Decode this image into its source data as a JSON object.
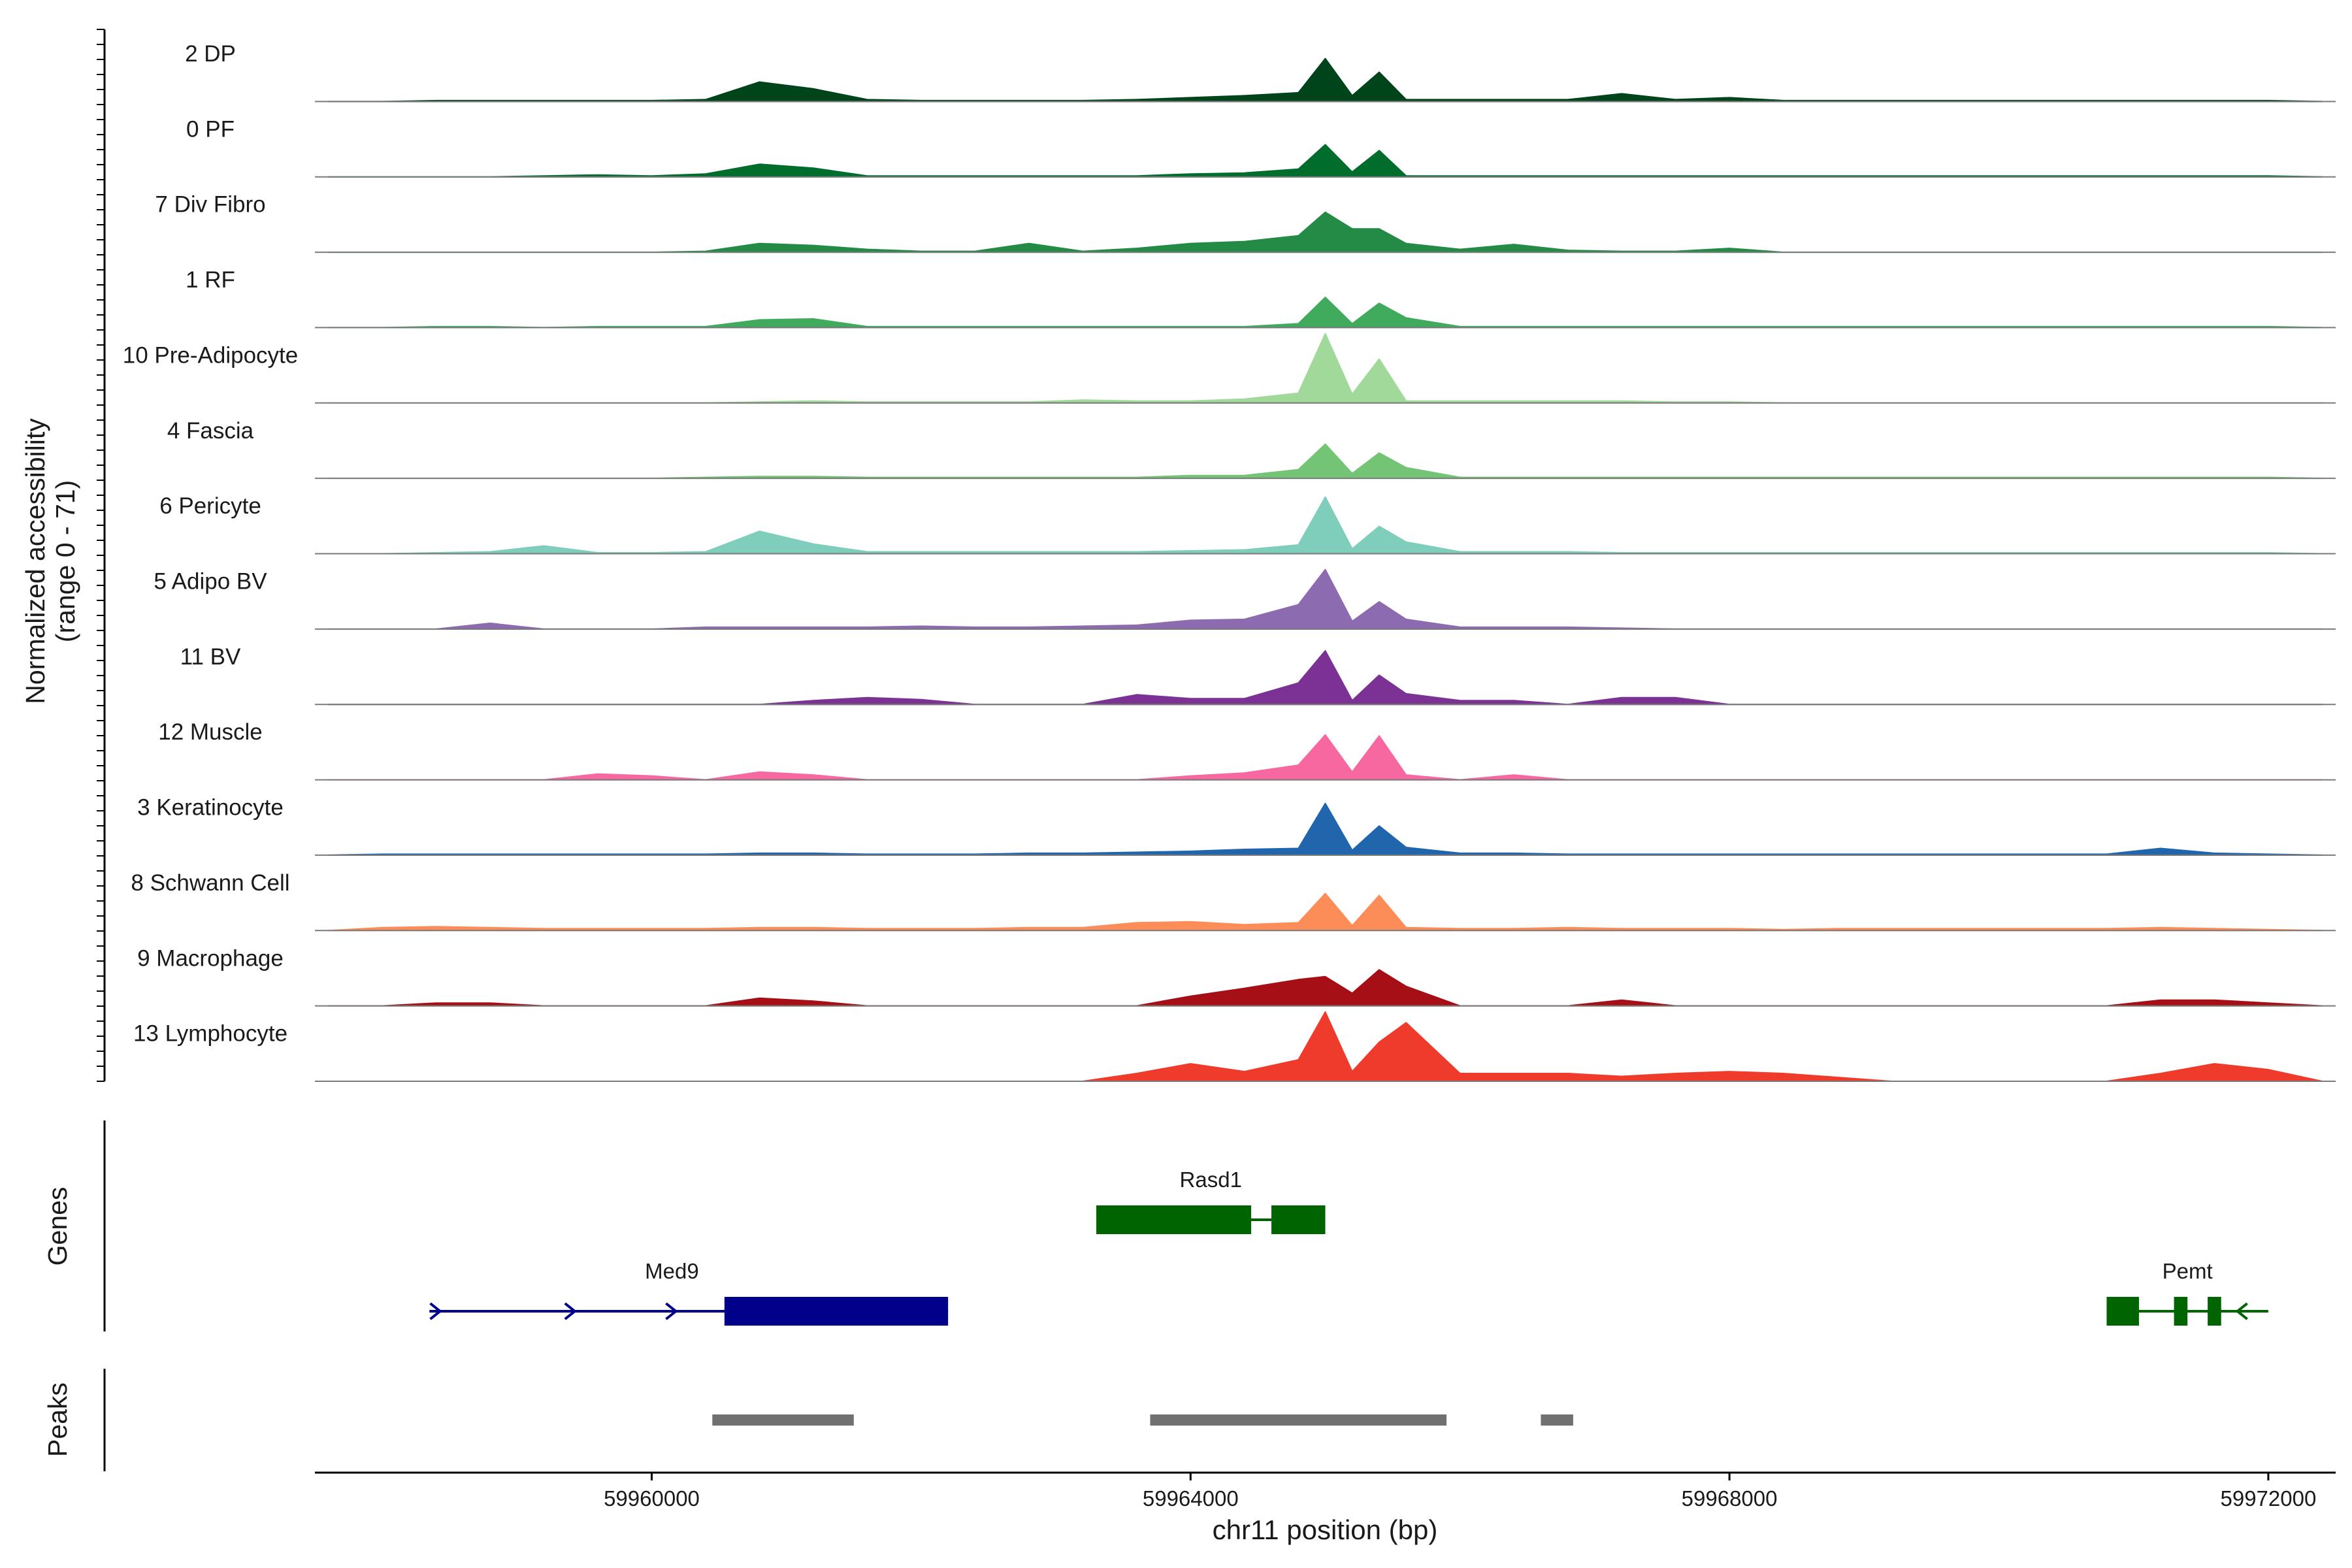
{
  "chart_data": {
    "type": "area",
    "coverage": {
      "ylabel_line1": "Normalized accessibility",
      "ylabel_line2": "(range 0 - 71)",
      "ylim": [
        0,
        71
      ],
      "x_positions": [
        59957600,
        59958000,
        59958400,
        59958800,
        59959200,
        59959600,
        59960000,
        59960400,
        59960800,
        59961200,
        59961600,
        59962000,
        59962400,
        59962800,
        59963200,
        59963600,
        59964000,
        59964400,
        59964800,
        59965000,
        59965200,
        59965400,
        59965600,
        59966000,
        59966400,
        59966800,
        59967200,
        59967600,
        59968000,
        59968400,
        59968800,
        59969200,
        59969600,
        59970000,
        59970400,
        59970800,
        59971200,
        59971600,
        59972000,
        59972400
      ],
      "tracks": [
        {
          "label": "2 DP",
          "color": "#00441b",
          "values": [
            0,
            0,
            1,
            1,
            1,
            1,
            1,
            2,
            20,
            13,
            2,
            1,
            1,
            1,
            1,
            2,
            4,
            6,
            9,
            44,
            6,
            30,
            2,
            2,
            2,
            2,
            8,
            2,
            4,
            1,
            1,
            1,
            1,
            1,
            1,
            1,
            1,
            1,
            1,
            0
          ]
        },
        {
          "label": "0 PF",
          "color": "#006d2c",
          "values": [
            0,
            0,
            0,
            0,
            1,
            2,
            1,
            3,
            13,
            9,
            1,
            1,
            1,
            1,
            1,
            1,
            3,
            4,
            8,
            33,
            5,
            27,
            1,
            1,
            1,
            1,
            1,
            1,
            1,
            1,
            1,
            1,
            1,
            1,
            1,
            1,
            1,
            1,
            1,
            0
          ]
        },
        {
          "label": "7 Div Fibro",
          "color": "#238b45",
          "values": [
            0,
            0,
            0,
            0,
            0,
            0,
            0,
            1,
            9,
            7,
            3,
            1,
            1,
            9,
            1,
            4,
            9,
            11,
            17,
            41,
            24,
            24,
            9,
            3,
            8,
            2,
            1,
            1,
            4,
            0,
            0,
            0,
            0,
            0,
            0,
            0,
            0,
            0,
            0,
            0
          ]
        },
        {
          "label": "1 RF",
          "color": "#41ab5d",
          "values": [
            0,
            0,
            1,
            1,
            0,
            1,
            1,
            1,
            8,
            9,
            1,
            1,
            1,
            1,
            1,
            1,
            1,
            1,
            4,
            31,
            4,
            25,
            10,
            1,
            1,
            1,
            1,
            1,
            1,
            1,
            1,
            1,
            1,
            1,
            1,
            1,
            1,
            1,
            1,
            0
          ]
        },
        {
          "label": "10 Pre-Adipocyte",
          "color": "#a1d99b",
          "values": [
            0,
            0,
            0,
            0,
            0,
            0,
            0,
            0,
            1,
            2,
            1,
            1,
            1,
            1,
            3,
            2,
            2,
            4,
            10,
            71,
            9,
            45,
            2,
            2,
            2,
            2,
            2,
            1,
            1,
            0,
            0,
            0,
            0,
            0,
            0,
            0,
            0,
            0,
            0,
            0
          ]
        },
        {
          "label": "4 Fascia",
          "color": "#74c476",
          "values": [
            0,
            0,
            0,
            0,
            0,
            0,
            0,
            1,
            2,
            2,
            1,
            1,
            1,
            1,
            1,
            1,
            3,
            3,
            9,
            35,
            5,
            26,
            11,
            1,
            1,
            1,
            1,
            1,
            1,
            1,
            1,
            1,
            1,
            1,
            1,
            1,
            1,
            1,
            1,
            0
          ]
        },
        {
          "label": "6 Pericyte",
          "color": "#7fcdbb",
          "values": [
            0,
            0,
            1,
            2,
            8,
            1,
            1,
            2,
            23,
            10,
            2,
            2,
            2,
            2,
            2,
            2,
            3,
            4,
            9,
            58,
            5,
            28,
            12,
            2,
            2,
            2,
            1,
            1,
            1,
            1,
            1,
            1,
            1,
            1,
            1,
            1,
            1,
            1,
            1,
            0
          ]
        },
        {
          "label": "5 Adipo BV",
          "color": "#8c6bb1",
          "values": [
            0,
            0,
            0,
            6,
            0,
            0,
            0,
            2,
            2,
            2,
            2,
            3,
            2,
            2,
            3,
            4,
            9,
            10,
            25,
            61,
            8,
            28,
            10,
            2,
            2,
            2,
            1,
            0,
            0,
            0,
            0,
            0,
            0,
            0,
            0,
            0,
            0,
            0,
            0,
            0
          ]
        },
        {
          "label": "11 BV",
          "color": "#7b3294",
          "values": [
            0,
            0,
            0,
            0,
            0,
            0,
            0,
            0,
            0,
            4,
            7,
            5,
            0,
            0,
            0,
            10,
            6,
            6,
            22,
            55,
            4,
            30,
            11,
            4,
            4,
            0,
            7,
            7,
            0,
            0,
            0,
            0,
            0,
            0,
            0,
            0,
            0,
            0,
            0,
            0
          ]
        },
        {
          "label": "12 Muscle",
          "color": "#f768a1",
          "values": [
            0,
            0,
            0,
            0,
            0,
            6,
            4,
            0,
            8,
            5,
            0,
            0,
            0,
            0,
            0,
            0,
            4,
            7,
            15,
            46,
            8,
            45,
            5,
            0,
            5,
            0,
            0,
            0,
            0,
            0,
            0,
            0,
            0,
            0,
            0,
            0,
            0,
            0,
            0,
            0
          ]
        },
        {
          "label": "3 Keratinocyte",
          "color": "#2166ac",
          "values": [
            0,
            1,
            1,
            1,
            1,
            1,
            1,
            1,
            2,
            2,
            1,
            1,
            1,
            2,
            2,
            3,
            4,
            6,
            7,
            53,
            5,
            30,
            8,
            2,
            2,
            1,
            1,
            1,
            1,
            1,
            1,
            1,
            1,
            1,
            1,
            1,
            7,
            2,
            1,
            0
          ]
        },
        {
          "label": "8 Schwann Cell",
          "color": "#fc8d59",
          "values": [
            0,
            3,
            4,
            3,
            2,
            2,
            2,
            2,
            3,
            3,
            2,
            2,
            2,
            3,
            3,
            8,
            9,
            6,
            8,
            38,
            5,
            36,
            3,
            2,
            2,
            3,
            2,
            2,
            2,
            1,
            2,
            2,
            2,
            2,
            2,
            2,
            3,
            2,
            1,
            0
          ]
        },
        {
          "label": "9 Macrophage",
          "color": "#a50f15",
          "values": [
            0,
            0,
            3,
            3,
            0,
            0,
            0,
            0,
            8,
            5,
            0,
            0,
            0,
            0,
            0,
            0,
            10,
            18,
            27,
            30,
            13,
            37,
            20,
            0,
            0,
            0,
            6,
            0,
            0,
            0,
            0,
            0,
            0,
            0,
            0,
            0,
            6,
            6,
            3,
            0
          ]
        },
        {
          "label": "13 Lymphocyte",
          "color": "#ef3b2c",
          "values": [
            0,
            0,
            0,
            0,
            0,
            0,
            0,
            0,
            0,
            0,
            0,
            0,
            0,
            0,
            0,
            8,
            18,
            10,
            22,
            71,
            10,
            40,
            60,
            8,
            8,
            8,
            5,
            8,
            10,
            8,
            4,
            0,
            0,
            0,
            0,
            0,
            8,
            18,
            12,
            0
          ]
        }
      ]
    },
    "genes": {
      "ylabel": "Genes",
      "items": [
        {
          "name": "Rasd1",
          "color": "#006400",
          "strand": "+",
          "exons": [
            [
              59963300,
              59964450
            ],
            [
              59964600,
              59965000
            ]
          ]
        },
        {
          "name": "Med9",
          "color": "#00008b",
          "strand": "+",
          "start": 59958350,
          "end": 59962200,
          "exons": [
            [
              59960540,
              59962200
            ]
          ],
          "arrows": [
            59958400,
            59959400,
            59960150
          ]
        },
        {
          "name": "Pemt",
          "color": "#006400",
          "strand": "-",
          "start": 59970800,
          "end": 59972000,
          "exons": [
            [
              59970800,
              59971040
            ],
            [
              59971300,
              59971400
            ],
            [
              59971550,
              59971650
            ]
          ],
          "arrows": [
            59971800
          ]
        }
      ]
    },
    "peaks": {
      "ylabel": "Peaks",
      "color": "#707070",
      "regions": [
        [
          59960450,
          59961500
        ],
        [
          59963700,
          59965900
        ],
        [
          59966600,
          59966840
        ]
      ]
    },
    "xaxis": {
      "label": "chr11 position (bp)",
      "ticks": [
        59960000,
        59964000,
        59968000,
        59972000
      ],
      "tick_labels": [
        "59960000",
        "59964000",
        "59968000",
        "59972000"
      ],
      "xlim": [
        59957500,
        59972500
      ]
    }
  }
}
